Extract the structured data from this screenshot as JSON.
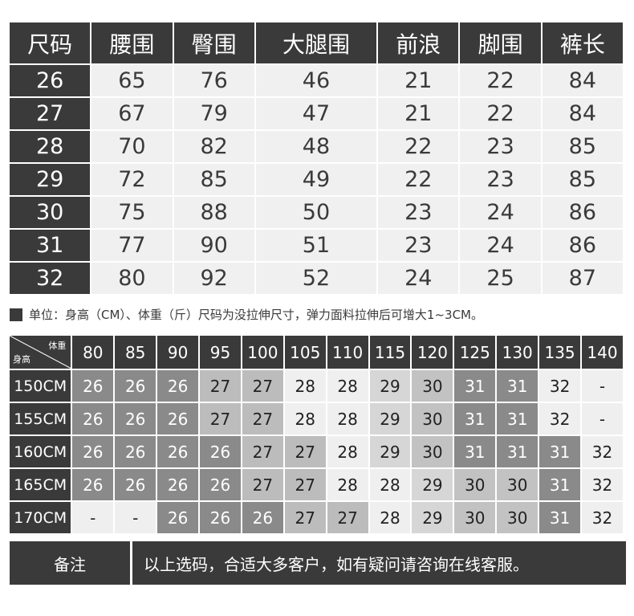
{
  "size_table": {
    "headers": [
      "尺码",
      "腰围",
      "臀围",
      "大腿围",
      "前浪",
      "脚围",
      "裤长"
    ],
    "rows": [
      [
        "26",
        "65",
        "76",
        "46",
        "21",
        "22",
        "84"
      ],
      [
        "27",
        "67",
        "79",
        "47",
        "21",
        "22",
        "84"
      ],
      [
        "28",
        "70",
        "82",
        "48",
        "22",
        "23",
        "85"
      ],
      [
        "29",
        "72",
        "85",
        "49",
        "22",
        "23",
        "85"
      ],
      [
        "30",
        "75",
        "88",
        "50",
        "23",
        "24",
        "86"
      ],
      [
        "31",
        "77",
        "90",
        "51",
        "23",
        "24",
        "86"
      ],
      [
        "32",
        "80",
        "92",
        "52",
        "24",
        "25",
        "87"
      ]
    ]
  },
  "note": "单位：身高（CM）、体重（斤）尺码为没拉伸尺寸，弹力面料拉伸后可增大1~3CM。",
  "reco_table": {
    "corner_weight": "体重",
    "corner_height": "身高",
    "weights": [
      "80",
      "85",
      "90",
      "95",
      "100",
      "105",
      "110",
      "115",
      "120",
      "125",
      "130",
      "135",
      "140"
    ],
    "rows": [
      {
        "height": "150CM",
        "sizes": [
          "26",
          "26",
          "26",
          "27",
          "27",
          "28",
          "28",
          "29",
          "30",
          "31",
          "31",
          "32",
          "-"
        ]
      },
      {
        "height": "155CM",
        "sizes": [
          "26",
          "26",
          "26",
          "27",
          "27",
          "28",
          "28",
          "29",
          "30",
          "31",
          "31",
          "32",
          "-"
        ]
      },
      {
        "height": "160CM",
        "sizes": [
          "26",
          "26",
          "26",
          "26",
          "27",
          "27",
          "28",
          "29",
          "30",
          "31",
          "31",
          "31",
          "32"
        ]
      },
      {
        "height": "165CM",
        "sizes": [
          "26",
          "26",
          "26",
          "26",
          "27",
          "27",
          "28",
          "28",
          "29",
          "30",
          "30",
          "31",
          "32"
        ]
      },
      {
        "height": "170CM",
        "sizes": [
          "-",
          "-",
          "26",
          "26",
          "26",
          "27",
          "27",
          "28",
          "29",
          "30",
          "30",
          "31",
          "32"
        ]
      }
    ],
    "cell_colors": {
      "26": "#8a8a8a",
      "27": "#bcbcbc",
      "28": "#efefef",
      "29": "#d6d6d6",
      "30": "#c2c2c2",
      "31": "#8a8a8a",
      "32": "#efefef",
      "-": "#efefef"
    }
  },
  "footer": {
    "label": "备注",
    "text": "以上选码，合适大多客户，如有疑问请咨询在线客服。"
  }
}
